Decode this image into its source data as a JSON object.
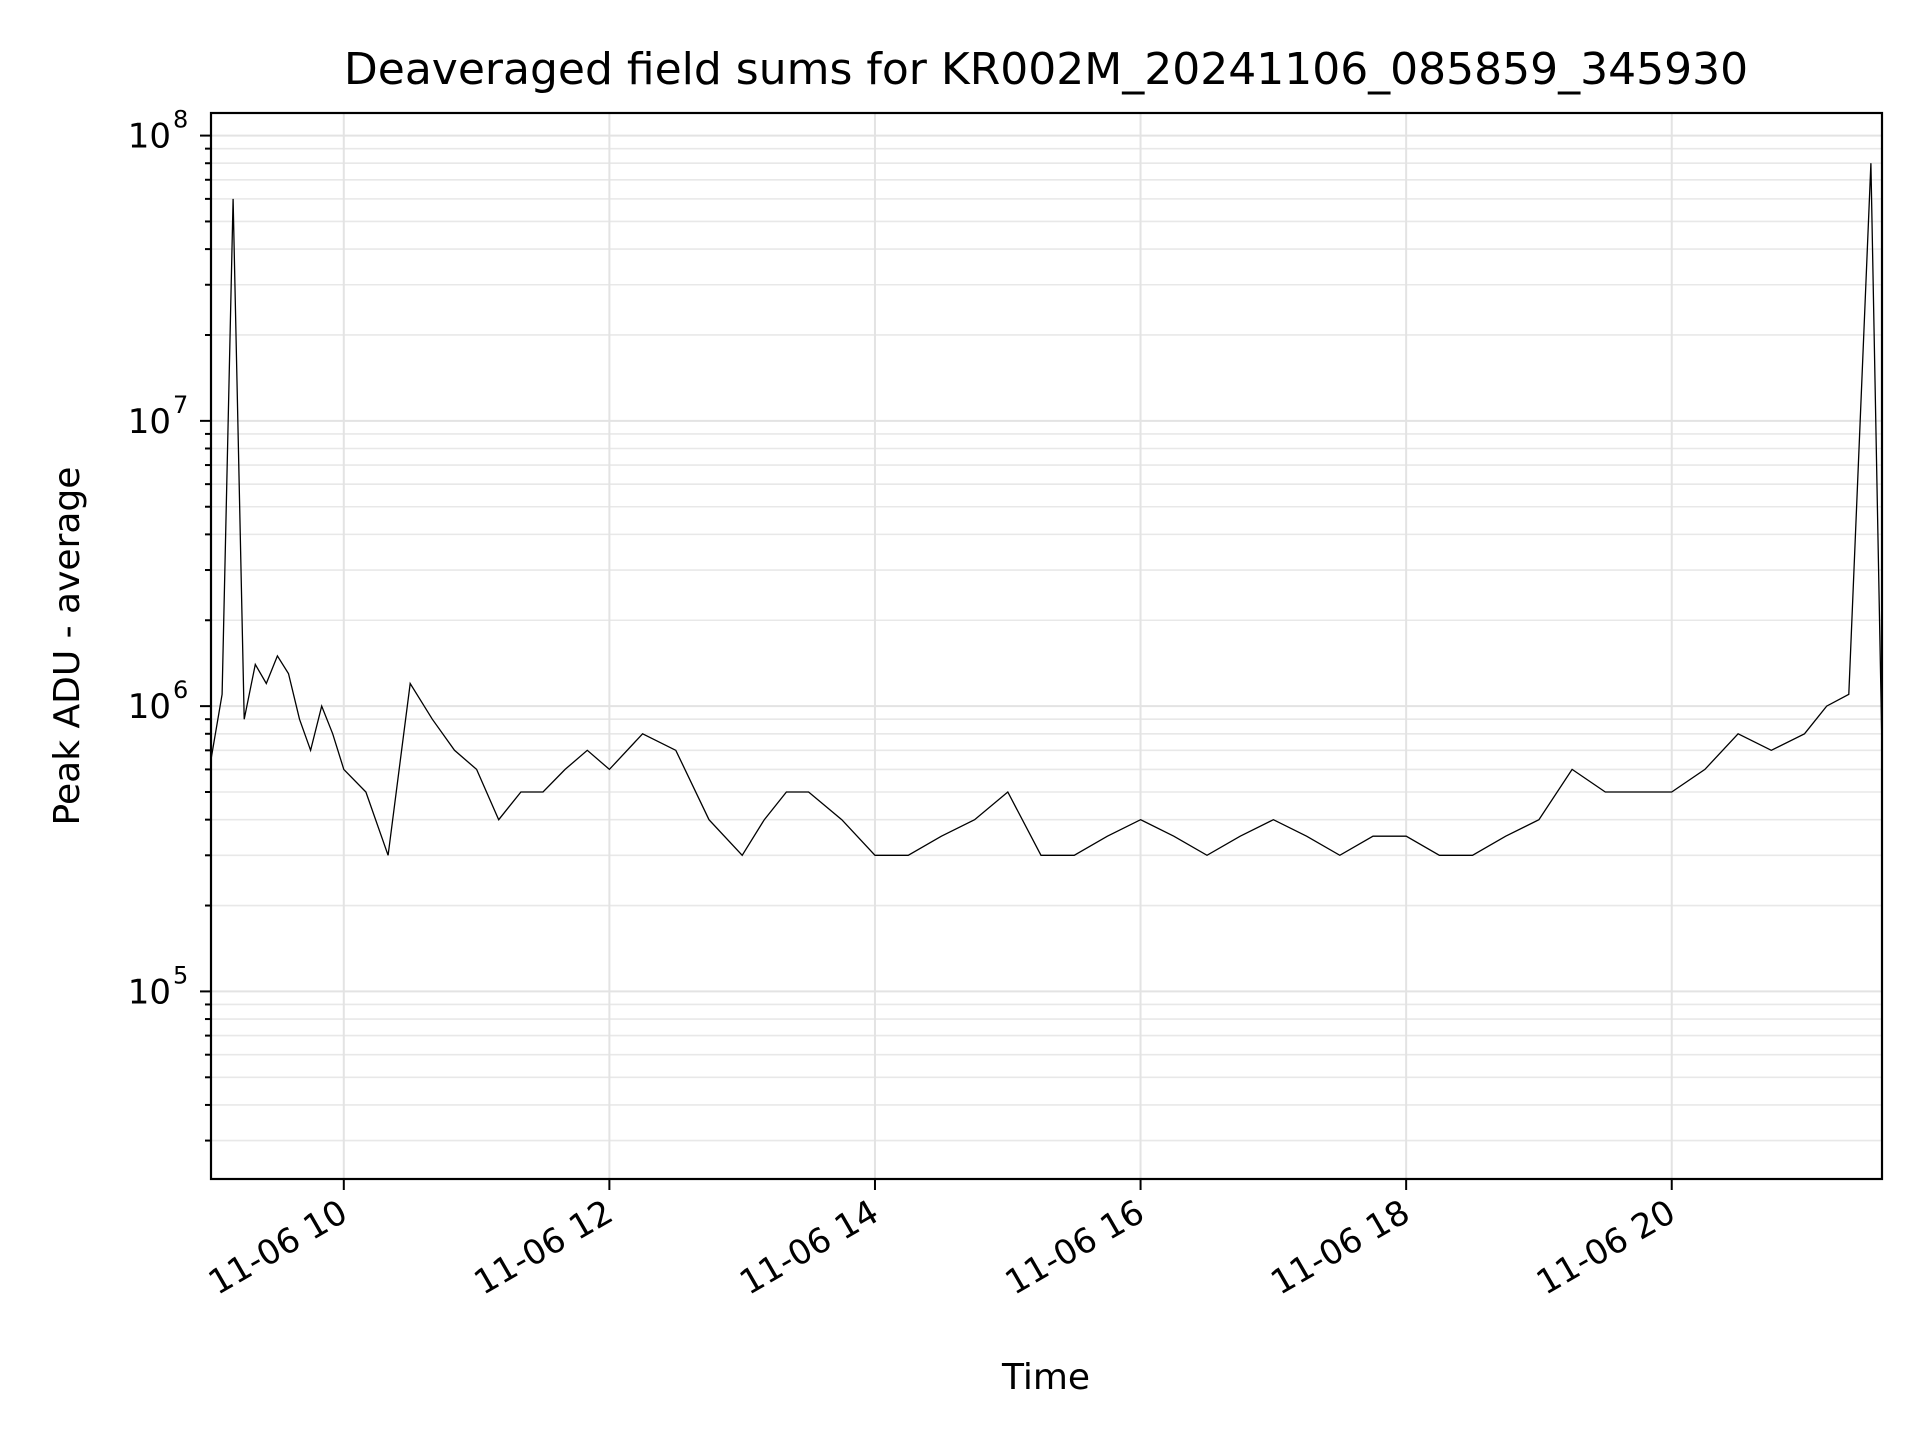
{
  "chart_data": {
    "type": "line",
    "title": "Deaveraged field sums for KR002M_20241106_085859_345930",
    "xlabel": "Time",
    "ylabel": "Peak ADU - average",
    "x_range": [
      "2024-11-06 09:00",
      "2024-11-06 21:35"
    ],
    "y_range": [
      22000,
      120000000
    ],
    "y_scale": "log",
    "grid": true,
    "x_ticks": [
      {
        "value": "2024-11-06 10:00",
        "label": "11-06 10"
      },
      {
        "value": "2024-11-06 12:00",
        "label": "11-06 12"
      },
      {
        "value": "2024-11-06 14:00",
        "label": "11-06 14"
      },
      {
        "value": "2024-11-06 16:00",
        "label": "11-06 16"
      },
      {
        "value": "2024-11-06 18:00",
        "label": "11-06 18"
      },
      {
        "value": "2024-11-06 20:00",
        "label": "11-06 20"
      }
    ],
    "y_ticks": [
      {
        "value": 100000,
        "base": "10",
        "exp": "5"
      },
      {
        "value": 1000000,
        "base": "10",
        "exp": "6"
      },
      {
        "value": 10000000,
        "base": "10",
        "exp": "7"
      },
      {
        "value": 100000000,
        "base": "10",
        "exp": "8"
      }
    ],
    "series": [
      {
        "color": "#000000",
        "x": [
          "2024-11-06 09:00",
          "2024-11-06 09:05",
          "2024-11-06 09:10",
          "2024-11-06 09:15",
          "2024-11-06 09:20",
          "2024-11-06 09:25",
          "2024-11-06 09:30",
          "2024-11-06 09:35",
          "2024-11-06 09:40",
          "2024-11-06 09:45",
          "2024-11-06 09:50",
          "2024-11-06 09:55",
          "2024-11-06 10:00",
          "2024-11-06 10:10",
          "2024-11-06 10:20",
          "2024-11-06 10:30",
          "2024-11-06 10:40",
          "2024-11-06 10:50",
          "2024-11-06 11:00",
          "2024-11-06 11:10",
          "2024-11-06 11:20",
          "2024-11-06 11:30",
          "2024-11-06 11:40",
          "2024-11-06 11:50",
          "2024-11-06 12:00",
          "2024-11-06 12:15",
          "2024-11-06 12:30",
          "2024-11-06 12:45",
          "2024-11-06 13:00",
          "2024-11-06 13:10",
          "2024-11-06 13:20",
          "2024-11-06 13:30",
          "2024-11-06 13:45",
          "2024-11-06 14:00",
          "2024-11-06 14:15",
          "2024-11-06 14:30",
          "2024-11-06 14:45",
          "2024-11-06 15:00",
          "2024-11-06 15:15",
          "2024-11-06 15:30",
          "2024-11-06 15:45",
          "2024-11-06 16:00",
          "2024-11-06 16:15",
          "2024-11-06 16:30",
          "2024-11-06 16:45",
          "2024-11-06 17:00",
          "2024-11-06 17:15",
          "2024-11-06 17:30",
          "2024-11-06 17:45",
          "2024-11-06 18:00",
          "2024-11-06 18:15",
          "2024-11-06 18:30",
          "2024-11-06 18:45",
          "2024-11-06 19:00",
          "2024-11-06 19:15",
          "2024-11-06 19:30",
          "2024-11-06 19:45",
          "2024-11-06 20:00",
          "2024-11-06 20:15",
          "2024-11-06 20:30",
          "2024-11-06 20:45",
          "2024-11-06 21:00",
          "2024-11-06 21:10",
          "2024-11-06 21:20",
          "2024-11-06 21:30",
          "2024-11-06 21:35"
        ],
        "values": [
          650000,
          1100000,
          60000000,
          900000,
          1400000,
          1200000,
          1500000,
          1300000,
          900000,
          700000,
          1000000,
          800000,
          600000,
          500000,
          300000,
          1200000,
          900000,
          700000,
          600000,
          400000,
          500000,
          500000,
          600000,
          700000,
          600000,
          800000,
          700000,
          400000,
          300000,
          400000,
          500000,
          500000,
          400000,
          300000,
          300000,
          350000,
          400000,
          500000,
          300000,
          300000,
          350000,
          400000,
          350000,
          300000,
          350000,
          400000,
          350000,
          300000,
          350000,
          350000,
          300000,
          300000,
          350000,
          400000,
          600000,
          500000,
          500000,
          500000,
          600000,
          800000,
          700000,
          800000,
          1000000,
          1100000,
          80000000,
          700000
        ]
      }
    ]
  }
}
